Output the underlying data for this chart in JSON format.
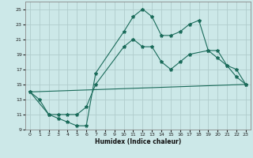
{
  "xlabel": "Humidex (Indice chaleur)",
  "background_color": "#cce8e8",
  "grid_color": "#b0cccc",
  "line_color": "#1a6b5a",
  "xlim": [
    -0.5,
    23.5
  ],
  "ylim": [
    9,
    26
  ],
  "xticks": [
    0,
    1,
    2,
    3,
    4,
    5,
    6,
    7,
    8,
    9,
    10,
    11,
    12,
    13,
    14,
    15,
    16,
    17,
    18,
    19,
    20,
    21,
    22,
    23
  ],
  "yticks": [
    9,
    11,
    13,
    15,
    17,
    19,
    21,
    23,
    25
  ],
  "line1_x": [
    0,
    1,
    2,
    3,
    4,
    5,
    6,
    7,
    10,
    11,
    12,
    13,
    14,
    15,
    16,
    17,
    18,
    19,
    20,
    21,
    22,
    23
  ],
  "line1_y": [
    14,
    13,
    11,
    10.5,
    10,
    9.5,
    9.5,
    16.5,
    22,
    24,
    25,
    24,
    21.5,
    21.5,
    22,
    23,
    23.5,
    19.5,
    19.5,
    17.5,
    16,
    15
  ],
  "line2_x": [
    0,
    2,
    3,
    4,
    5,
    6,
    7,
    10,
    11,
    12,
    13,
    14,
    15,
    16,
    17,
    19,
    20,
    21,
    22,
    23
  ],
  "line2_y": [
    14,
    11,
    11,
    11,
    11,
    12,
    15,
    20,
    21,
    20,
    20,
    18,
    17,
    18,
    19,
    19.5,
    18.5,
    17.5,
    17,
    15
  ],
  "line3_x": [
    0,
    23
  ],
  "line3_y": [
    14,
    15
  ]
}
